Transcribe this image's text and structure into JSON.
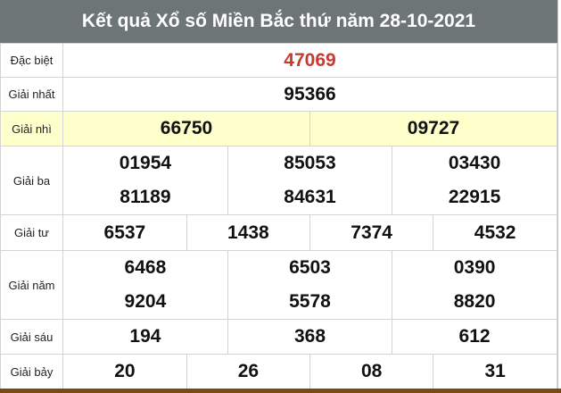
{
  "title": "Kết quả Xổ số Miền Bắc thứ năm 28-10-2021",
  "colors": {
    "header_bg": "#6e7576",
    "special": "#c8392f",
    "highlight_row": "#ffffcc",
    "bottom_bar": "#7a4a12"
  },
  "prizes": [
    {
      "label": "Đặc biệt",
      "numbers": [
        "47069"
      ]
    },
    {
      "label": "Giải nhất",
      "numbers": [
        "95366"
      ]
    },
    {
      "label": "Giải nhì",
      "numbers": [
        "66750",
        "09727"
      ]
    },
    {
      "label": "Giải ba",
      "numbers": [
        "01954",
        "85053",
        "03430",
        "81189",
        "84631",
        "22915"
      ]
    },
    {
      "label": "Giải tư",
      "numbers": [
        "6537",
        "1438",
        "7374",
        "4532"
      ]
    },
    {
      "label": "Giải năm",
      "numbers": [
        "6468",
        "6503",
        "0390",
        "9204",
        "5578",
        "8820"
      ]
    },
    {
      "label": "Giải sáu",
      "numbers": [
        "194",
        "368",
        "612"
      ]
    },
    {
      "label": "Giải bảy",
      "numbers": [
        "20",
        "26",
        "08",
        "31"
      ]
    }
  ]
}
